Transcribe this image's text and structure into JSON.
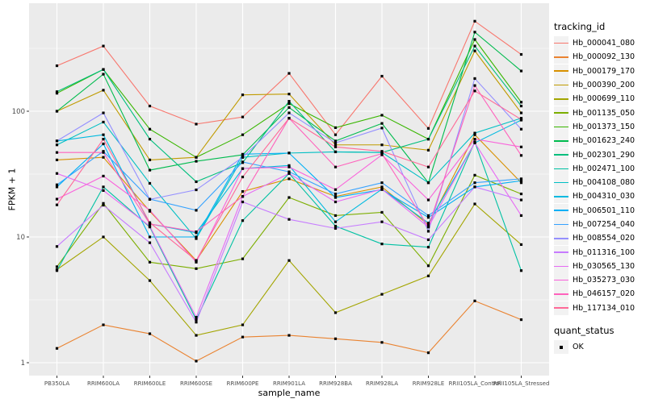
{
  "chart": {
    "y_axis_title": "FPKM + 1",
    "x_axis_title": "sample_name",
    "legend_title": "tracking_id",
    "quant_legend_title": "quant_status",
    "quant_legend_items": [
      {
        "label": "OK",
        "marker": "black-square"
      }
    ]
  },
  "chart_data": {
    "type": "line",
    "title": "",
    "xlabel": "sample_name",
    "ylabel": "FPKM + 1",
    "y_scale": "log10",
    "y_ticks": [
      1,
      10,
      100
    ],
    "y_minor_ticks": [
      3.162,
      31.62,
      316.2
    ],
    "ylim": [
      0.8,
      750
    ],
    "grid": "on",
    "panel_bg": "#EBEBEB",
    "grid_color": "#FFFFFF",
    "marker": "black-square",
    "legend_position": "right",
    "categories": [
      "PB350LA",
      "RRIM600LA",
      "RRIM600LE",
      "RRIM600SE",
      "RRIM600PE",
      "RRIM901LA",
      "RRIM928BA",
      "RRIM928LA",
      "RRIM928LE",
      "RRII105LA_Control",
      "RRII105LA_Stressed"
    ],
    "series": [
      {
        "name": "Hb_000041_080",
        "color": "#F8766D",
        "values": [
          230,
          330,
          110,
          79,
          90,
          200,
          65,
          190,
          73,
          520,
          283
        ]
      },
      {
        "name": "Hb_000092_130",
        "color": "#EA8331",
        "values": [
          1.3,
          2.0,
          1.7,
          1.03,
          1.6,
          1.65,
          1.55,
          1.45,
          1.2,
          3.1,
          2.2
        ]
      },
      {
        "name": "Hb_000179_170",
        "color": "#D89000",
        "values": [
          41,
          43,
          16,
          6.5,
          23,
          29,
          21,
          25,
          12.5,
          65,
          27
        ]
      },
      {
        "name": "Hb_000390_200",
        "color": "#C09B00",
        "values": [
          100,
          147,
          41,
          43,
          135,
          137,
          54,
          54,
          49,
          302,
          97
        ]
      },
      {
        "name": "Hb_000699_110",
        "color": "#A3A500",
        "values": [
          5.5,
          10,
          4.5,
          1.65,
          2.0,
          6.5,
          2.5,
          3.5,
          4.9,
          18.3,
          8.7
        ]
      },
      {
        "name": "Hb_001135_050",
        "color": "#7CAE00",
        "values": [
          5.8,
          18.5,
          6.3,
          5.6,
          6.7,
          20.6,
          14.8,
          15.7,
          5.9,
          31,
          22
        ]
      },
      {
        "name": "Hb_001373_150",
        "color": "#39B600",
        "values": [
          139,
          215,
          72,
          43,
          65,
          115,
          74,
          93,
          60,
          372,
          118
        ]
      },
      {
        "name": "Hb_001623_240",
        "color": "#00BB4E",
        "values": [
          100,
          197,
          34,
          40,
          45,
          107,
          58,
          80,
          27,
          426,
          209
        ]
      },
      {
        "name": "Hb_002301_290",
        "color": "#00BF7D",
        "values": [
          143,
          215,
          60,
          27.5,
          39,
          120,
          47.5,
          47,
          60,
          330,
          110
        ]
      },
      {
        "name": "Hb_002471_100",
        "color": "#00C1A3",
        "values": [
          5.4,
          25,
          12,
          2.2,
          13.5,
          32,
          12.2,
          8.8,
          8.3,
          57,
          5.4
        ]
      },
      {
        "name": "Hb_004108_080",
        "color": "#00BFC4",
        "values": [
          54,
          82,
          26.7,
          9.7,
          43,
          46.5,
          47.5,
          47,
          27,
          67,
          88
        ]
      },
      {
        "name": "Hb_004310_030",
        "color": "#00BAE0",
        "values": [
          58,
          65,
          12.7,
          10.8,
          35,
          37,
          13.2,
          24,
          12.9,
          56,
          85
        ]
      },
      {
        "name": "Hb_006501_110",
        "color": "#00B0F6",
        "values": [
          25,
          55,
          10,
          10,
          45.5,
          46.5,
          20.6,
          23.8,
          14.3,
          25,
          28
        ]
      },
      {
        "name": "Hb_007254_040",
        "color": "#35A2FF",
        "values": [
          26,
          48,
          20,
          16.3,
          39.5,
          33,
          22,
          27,
          14.8,
          27,
          29
        ]
      },
      {
        "name": "Hb_008554_020",
        "color": "#9590FF",
        "values": [
          58,
          97,
          19.9,
          23.7,
          43,
          97,
          56,
          73.5,
          11.1,
          182,
          72
        ]
      },
      {
        "name": "Hb_011316_100",
        "color": "#C77CFF",
        "values": [
          8.4,
          17.9,
          9.0,
          2.1,
          19,
          13.8,
          11.7,
          13.2,
          9.5,
          25,
          19.7
        ]
      },
      {
        "name": "Hb_030565_130",
        "color": "#E76BF3",
        "values": [
          32,
          23.4,
          12.2,
          2.3,
          21,
          32,
          19,
          24,
          12,
          56,
          14.8
        ]
      },
      {
        "name": "Hb_035273_030",
        "color": "#FA62DB",
        "values": [
          20,
          30.5,
          16.3,
          6.3,
          35,
          36,
          23.8,
          45,
          19.7,
          60,
          52
        ]
      },
      {
        "name": "Hb_046157_020",
        "color": "#FF62BC",
        "values": [
          47,
          47,
          12.7,
          11,
          21,
          88,
          36,
          46,
          12,
          160,
          44.5
        ]
      },
      {
        "name": "Hb_117134_010",
        "color": "#FF6A98",
        "values": [
          18,
          60,
          13,
          6.5,
          30,
          88,
          52,
          48,
          36,
          145,
          86
        ]
      }
    ]
  }
}
